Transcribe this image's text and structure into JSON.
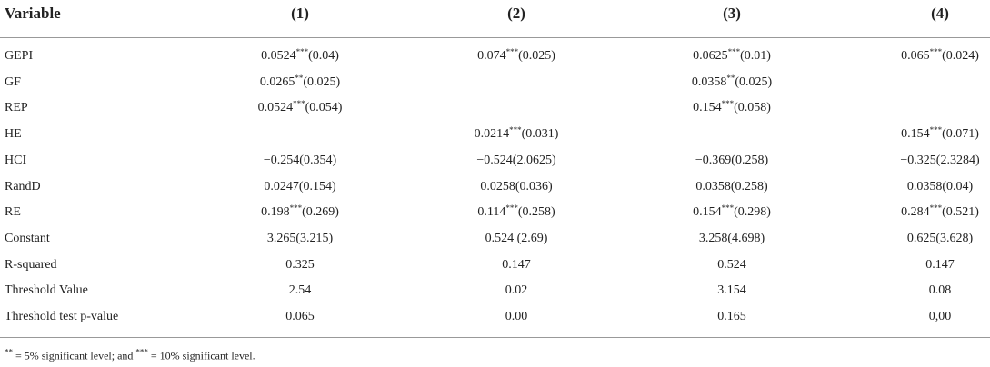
{
  "table": {
    "header": [
      "Variable",
      "(1)",
      "(2)",
      "(3)",
      "(4)"
    ],
    "rows": [
      [
        "GEPI",
        "0.0524***(0.04)",
        "0.074***(0.025)",
        "0.0625***(0.01)",
        "0.065***(0.024)"
      ],
      [
        "GF",
        "0.0265**(0.025)",
        "",
        "0.0358**(0.025)",
        ""
      ],
      [
        "REP",
        "0.0524***(0.054)",
        "",
        "0.154***(0.058)",
        ""
      ],
      [
        "HE",
        "",
        "0.0214***(0.031)",
        "",
        "0.154***(0.071)"
      ],
      [
        "HCI",
        "−0.254(0.354)",
        "−0.524(2.0625)",
        "−0.369(0.258)",
        "−0.325(2.3284)"
      ],
      [
        "RandD",
        "0.0247(0.154)",
        "0.0258(0.036)",
        "0.0358(0.258)",
        "0.0358(0.04)"
      ],
      [
        "RE",
        "0.198***(0.269)",
        "0.114***(0.258)",
        "0.154***(0.298)",
        "0.284***(0.521)"
      ],
      [
        "Constant",
        "3.265(3.215)",
        "0.524 (2.69)",
        "3.258(4.698)",
        "0.625(3.628)"
      ],
      [
        "R-squared",
        "0.325",
        "0.147",
        "0.524",
        "0.147"
      ],
      [
        "Threshold Value",
        "2.54",
        "0.02",
        "3.154",
        "0.08"
      ],
      [
        "Threshold test p-value",
        "0.065",
        "0.00",
        "0.165",
        "0,00"
      ]
    ],
    "footnote": "** = 5% significant level; and *** = 10% significant level."
  }
}
